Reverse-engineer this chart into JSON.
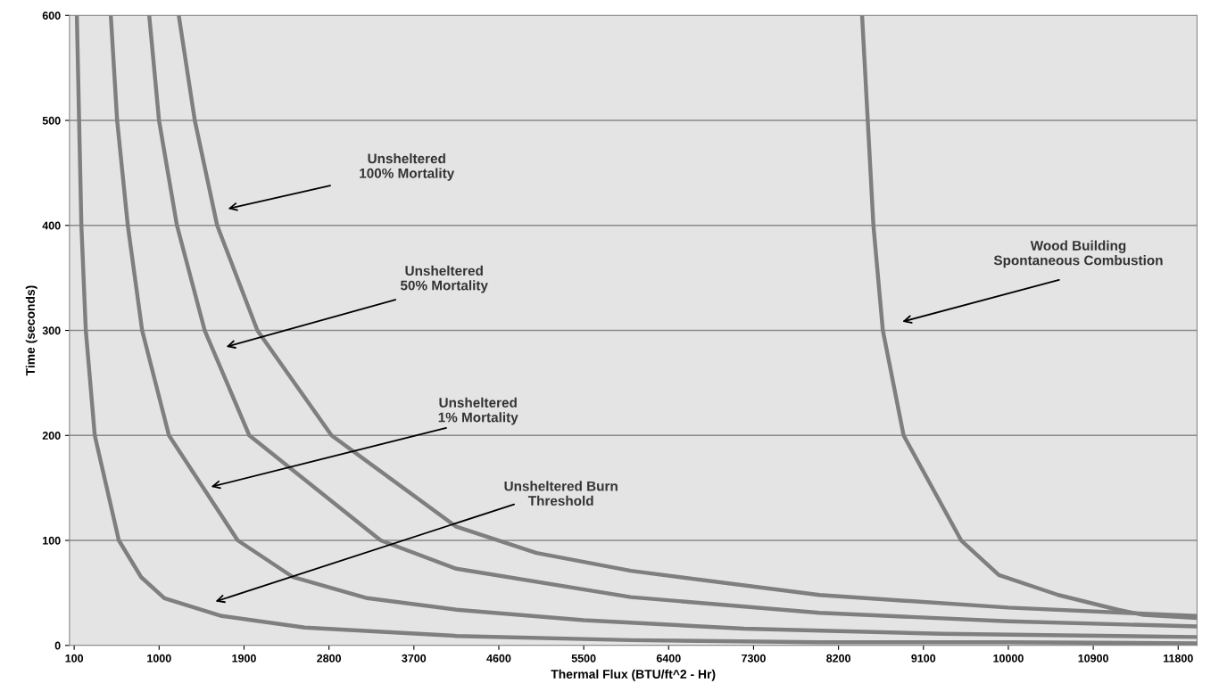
{
  "chart_data": {
    "type": "line",
    "xlabel": "Thermal Flux (BTU/ft^2 - Hr)",
    "ylabel": "Time (seconds)",
    "xlim": [
      50,
      12000
    ],
    "xticks": [
      100,
      1000,
      1900,
      2800,
      3700,
      4600,
      5500,
      6400,
      7300,
      8200,
      9100,
      10000,
      10900,
      11800
    ],
    "ylim": [
      0,
      600
    ],
    "yticks": [
      0,
      100,
      200,
      300,
      400,
      500,
      600
    ],
    "grid": "y",
    "marker": "none",
    "line_style": "solid",
    "series": [
      {
        "color": "#7f7f7f",
        "x": [
          128,
          176,
          223,
          318,
          573,
          810,
          1056,
          1663,
          2543,
          4153,
          6000,
          8000,
          10000,
          12000
        ],
        "values": [
          600,
          400,
          300,
          200,
          100,
          65,
          45,
          28,
          17,
          9,
          5,
          3,
          3,
          2
        ]
      },
      {
        "color": "#7f7f7f",
        "x": [
          488,
          555,
          668,
          820,
          1104,
          1833,
          2420,
          3206,
          4150,
          5500,
          7200,
          9300,
          12000
        ],
        "values": [
          600,
          500,
          400,
          300,
          200,
          100,
          65,
          45,
          34,
          24,
          16,
          11,
          8
        ]
      },
      {
        "color": "#7f7f7f",
        "x": [
          895,
          999,
          1189,
          1483,
          1956,
          3348,
          4150,
          6000,
          8000,
          10000,
          12000
        ],
        "values": [
          600,
          500,
          400,
          300,
          200,
          100,
          73,
          46,
          31,
          23,
          18
        ]
      },
      {
        "color": "#7f7f7f",
        "x": [
          1208,
          1378,
          1615,
          2041,
          2827,
          4150,
          5000,
          6000,
          8000,
          10000,
          12000
        ],
        "values": [
          600,
          500,
          400,
          300,
          200,
          113,
          88,
          71,
          48,
          36,
          28
        ]
      },
      {
        "color": "#7f7f7f",
        "x": [
          8450,
          8510,
          8570,
          8670,
          8890,
          9500,
          9900,
          10530,
          11160,
          11430,
          12000
        ],
        "values": [
          600,
          500,
          400,
          300,
          200,
          100,
          67,
          48,
          34,
          29,
          26
        ]
      }
    ],
    "annotations": [
      "Unsheltered\n100% Mortality",
      "Unsheltered\n50% Mortality",
      "Unsheltered\n1% Mortality",
      "Unsheltered Burn\nThreshold",
      "Wood Building\nSpontaneous Combustion"
    ]
  }
}
